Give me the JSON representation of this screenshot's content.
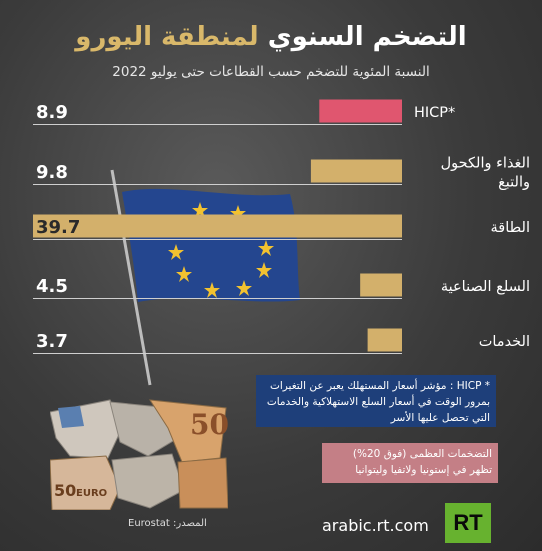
{
  "header": {
    "title_part1": "التضخم السنوي",
    "title_part2": "لمنطقة اليورو",
    "subtitle": "النسبة المئوية للتضخم حسب القطاعات حتى يوليو 2022"
  },
  "chart_data": {
    "type": "bar",
    "orientation": "horizontal",
    "categories": [
      "HICP*",
      "الغذاء والكحول والتبغ",
      "الطاقة",
      "السلع الصناعية",
      "الخدمات"
    ],
    "category_lines": [
      [
        "HICP*"
      ],
      [
        "الغذاء والكحول",
        "والتبغ"
      ],
      [
        "الطاقة"
      ],
      [
        "السلع الصناعية"
      ],
      [
        "الخدمات"
      ]
    ],
    "values": [
      8.9,
      9.8,
      39.7,
      4.5,
      3.7
    ],
    "value_labels": [
      "8.9",
      "9.8",
      "39.7",
      "4.5",
      "3.7"
    ],
    "colors": [
      "#e0566f",
      "#d3b06b",
      "#d3b06b",
      "#d3b06b",
      "#d3b06b"
    ],
    "xlim": [
      0,
      39.7
    ]
  },
  "notes": {
    "hicp_definition": "* HICP : مؤشر أسعار المستهلك يعبر عن التغيرات بمرور الوقت في أسعار السلع الاستهلاكية والخدمات التي تحصل عليها الأسر",
    "highest_inflation": "التضخمات العظمى (فوق 20%) تظهر في إستونيا ولاتفيا وليتوانيا"
  },
  "footer": {
    "site": "arabic.rt.com",
    "source": "المصدر: Eurostat",
    "logo_text": "RT"
  },
  "banknote_labels": {
    "note_50": "50",
    "note_euro": "EURO",
    "note_50_top": "50"
  },
  "colors": {
    "accent_gold": "#d9b86a",
    "hicp_bar": "#e0566f",
    "sector_bar": "#d3b06b",
    "note_blue": "#1e3f7a",
    "note_red": "#c47f86",
    "rt_green": "#67b22f"
  }
}
